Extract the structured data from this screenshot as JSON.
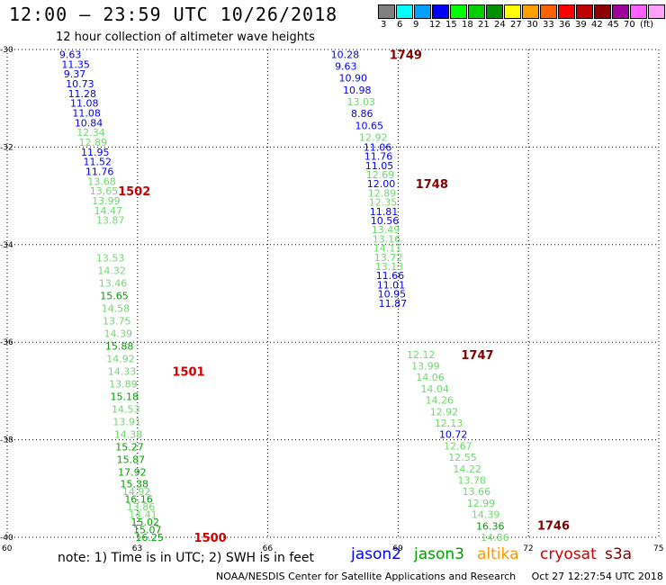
{
  "header": {
    "title": "12:00 – 23:59 UTC 10/26/2018",
    "subtitle": "12 hour collection of altimeter wave heights"
  },
  "legend": {
    "colors": [
      "#808080",
      "#00ffff",
      "#00a0ff",
      "#0000ff",
      "#00ff00",
      "#00d000",
      "#009000",
      "#ffff00",
      "#ffa000",
      "#ff6000",
      "#ff0000",
      "#c00000",
      "#900000",
      "#a000a0",
      "#ff60ff",
      "#ffa0ff",
      "#000000"
    ],
    "labels": [
      "3",
      "6",
      "9",
      "12",
      "15",
      "18",
      "21",
      "24",
      "27",
      "30",
      "33",
      "36",
      "39",
      "42",
      "45",
      "70",
      "(ft)"
    ],
    "label_slots": [
      0,
      1,
      2,
      3,
      4,
      5,
      6,
      7,
      8,
      9,
      10,
      11,
      12,
      13,
      14,
      15,
      16
    ]
  },
  "map": {
    "lat_ticks": [
      "-30",
      "-32",
      "-34",
      "-36",
      "-38",
      "-40"
    ],
    "lon_ticks": [
      "60",
      "63",
      "66",
      "69",
      "72",
      "75"
    ],
    "lat_range": [
      -40,
      -30
    ],
    "lon_range": [
      60,
      75
    ]
  },
  "tracks": [
    {
      "id": "1502",
      "lon0": 61.2,
      "lon1": 62.05,
      "lat_top": -30.1,
      "lat_bot": -33.5,
      "label": "1502",
      "label_color": "#cc0000",
      "label_pos": [
        62.55,
        -32.9
      ],
      "values": [
        "9.63",
        "11.35",
        "9.37",
        "10.73",
        "11.28",
        "11.08",
        "11.08",
        "10.84",
        "12.34",
        "12.89",
        "11.95",
        "11.52",
        "11.76",
        "13.68",
        "13.65",
        "13.99",
        "14.47",
        "13.87"
      ],
      "colors": [
        "#0000ff",
        "#0000ff",
        "#0000ff",
        "#0000ff",
        "#0000ff",
        "#0000ff",
        "#0000ff",
        "#0000ff",
        "#70d870",
        "#70d870",
        "#0000ff",
        "#0000ff",
        "#0000ff",
        "#70d870",
        "#70d870",
        "#70d870",
        "#70d870",
        "#70d870"
      ]
    },
    {
      "id": "1501",
      "lon0": 62.05,
      "lon1": 62.55,
      "lat_top": -34.27,
      "lat_bot": -38.66,
      "label": "1501",
      "label_color": "#cc0000",
      "label_pos": [
        63.8,
        -36.6
      ],
      "values": [
        "13.53",
        "14.32",
        "13.46",
        "15.65",
        "14.58",
        "13.75",
        "14.39",
        "15.88",
        "14.92",
        "14.33",
        "13.89",
        "15.18",
        "14.53",
        "13.91",
        "14.38",
        "15.27",
        "15.87",
        "17.92"
      ],
      "colors": [
        "#70d870",
        "#70d870",
        "#70d870",
        "#00a000",
        "#70d870",
        "#70d870",
        "#70d870",
        "#00a000",
        "#70d870",
        "#70d870",
        "#70d870",
        "#00a000",
        "#70d870",
        "#70d870",
        "#70d870",
        "#00a000",
        "#00a000",
        "#00a000"
      ]
    },
    {
      "id": "1500",
      "lon0": 62.6,
      "lon1": 62.95,
      "lat_top": -38.9,
      "lat_bot": -40.0,
      "label": "1500",
      "label_color": "#cc0000",
      "label_pos": [
        64.3,
        -40.0
      ],
      "values": [
        "15.38",
        "14.92",
        "16.16",
        "13.86",
        "14.41",
        "15.02",
        "15.07",
        "16.25"
      ],
      "colors": [
        "#00a000",
        "#70d870",
        "#00a000",
        "#70d870",
        "#70d870",
        "#00a000",
        "#00a000",
        "#00a000"
      ]
    },
    {
      "id": "1749",
      "lon0": 67.45,
      "lon1": 68.1,
      "lat_top": -30.1,
      "lat_bot": -31.8,
      "label": "1749",
      "label_color": "#800000",
      "label_pos": [
        68.8,
        -30.1
      ],
      "values": [
        "10.28",
        "9.63",
        "10.90",
        "10.98",
        "13.03",
        "8.86",
        "10.65",
        "12.92"
      ],
      "colors": [
        "#0000ff",
        "#0000ff",
        "#0000ff",
        "#0000ff",
        "#70d870",
        "#0000ff",
        "#0000ff",
        "#70d870"
      ]
    },
    {
      "id": "1748",
      "lon0": 68.2,
      "lon1": 68.55,
      "lat_top": -32.0,
      "lat_bot": -35.2,
      "label": "1748",
      "label_color": "#800000",
      "label_pos": [
        69.4,
        -32.75
      ],
      "values": [
        "11.06",
        "11.76",
        "11.05",
        "12.69",
        "12.00",
        "12.89",
        "12.35",
        "11.81",
        "10.56",
        "13.49",
        "13.16",
        "14.11",
        "13.72",
        "13.13",
        "11.66",
        "11.01",
        "10.95",
        "11.87"
      ],
      "colors": [
        "#0000ff",
        "#0000ff",
        "#0000ff",
        "#70d870",
        "#0000ff",
        "#70d870",
        "#70d870",
        "#0000ff",
        "#0000ff",
        "#70d870",
        "#70d870",
        "#70d870",
        "#70d870",
        "#70d870",
        "#0000ff",
        "#0000ff",
        "#0000ff",
        "#0000ff"
      ]
    },
    {
      "id": "1747",
      "lon0": 69.2,
      "lon1": 70.9,
      "lat_top": -36.25,
      "lat_bot": -40.0,
      "label": "1747",
      "label_color": "#800000",
      "label_pos": [
        70.45,
        -36.25
      ],
      "values": [
        "12.12",
        "13.99",
        "14.06",
        "14.04",
        "14.26",
        "12.92",
        "12.13",
        "10.72",
        "12.67",
        "12.55",
        "14.22",
        "13.78",
        "13.66",
        "12.99",
        "14.39",
        "16.36",
        "14.86"
      ],
      "colors": [
        "#70d870",
        "#70d870",
        "#70d870",
        "#70d870",
        "#70d870",
        "#70d870",
        "#70d870",
        "#0000ff",
        "#70d870",
        "#70d870",
        "#70d870",
        "#70d870",
        "#70d870",
        "#70d870",
        "#70d870",
        "#00a000",
        "#70d870"
      ]
    },
    {
      "id": "1746",
      "lon0": 71.3,
      "lon1": 71.3,
      "lat_top": -39.75,
      "lat_bot": -39.75,
      "label": "1746",
      "label_color": "#800000",
      "label_pos": [
        72.2,
        -39.75
      ],
      "values": [],
      "colors": []
    }
  ],
  "footer": {
    "note": "note: 1) Time is in UTC; 2) SWH is in feet",
    "satellites": [
      {
        "name": "jason2",
        "color": "#0000ff"
      },
      {
        "name": "jason3",
        "color": "#00a000"
      },
      {
        "name": "altika",
        "color": "#ff9900"
      },
      {
        "name": "cryosat",
        "color": "#cc0000"
      },
      {
        "name": "s3a",
        "color": "#800000"
      }
    ],
    "credit": "NOAA/NESDIS Center for Satellite Applications and Research",
    "timestamp": "Oct 27 12:27:54 UTC 2018"
  }
}
